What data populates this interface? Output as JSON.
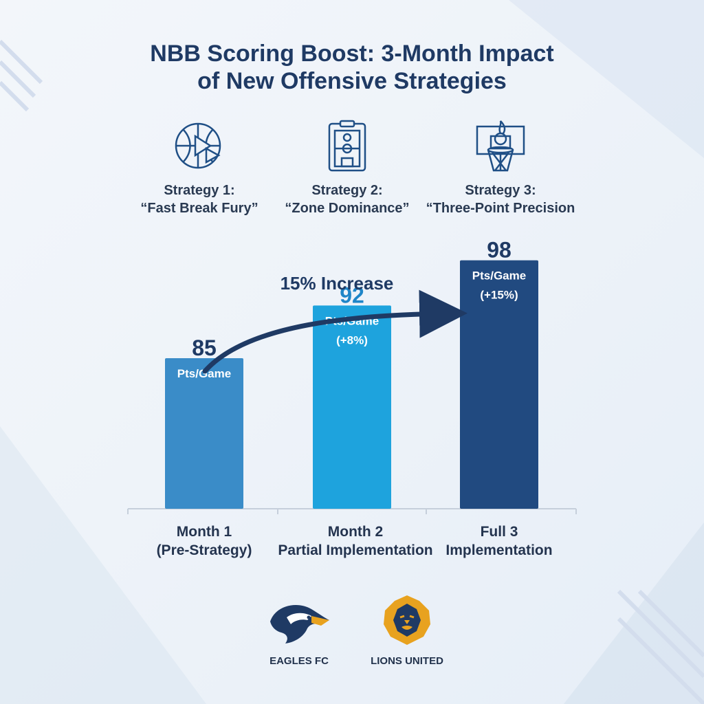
{
  "title": {
    "line1": "NBB Scoring Boost: 3-Month Impact",
    "line2": "of New Offensive Strategies"
  },
  "strategies": [
    {
      "icon": "basketball-play-icon",
      "name": "Strategy 1:",
      "quote": "“Fast Break Fury”"
    },
    {
      "icon": "clipboard-court-icon",
      "name": "Strategy 2:",
      "quote": "“Zone Dominance”"
    },
    {
      "icon": "flaming-hoop-icon",
      "name": "Strategy 3:",
      "quote": "“Three-Point Precision"
    }
  ],
  "annotation": "15% Increase",
  "chart_data": {
    "type": "bar",
    "categories": [
      "Month 1 (Pre-Strategy)",
      "Month 2 Partial Implementation",
      "Full 3 Implementation"
    ],
    "category_lines": [
      [
        "Month 1",
        "(Pre-Strategy)"
      ],
      [
        "Month 2",
        "Partial Implementation"
      ],
      [
        "Full 3",
        "Implementation"
      ]
    ],
    "values": [
      85,
      92,
      98
    ],
    "value_labels": [
      "85",
      "92",
      "98"
    ],
    "bar_text": [
      [
        "Pts/Game"
      ],
      [
        "Pts/Game",
        "(+8%)"
      ],
      [
        "Pts/Game",
        "(+15%)"
      ]
    ],
    "colors": [
      "#3a8cc8",
      "#1ea3dd",
      "#214a80"
    ],
    "ylim": [
      65,
      100
    ],
    "grid": false,
    "legend": "none"
  },
  "teams": [
    {
      "name": "EAGLES FC",
      "logo": "eagle-logo"
    },
    {
      "name": "LIONS UNITED",
      "logo": "lion-logo"
    }
  ],
  "colors": {
    "title": "#1f3a64",
    "arrow": "#1f3a64",
    "axis": "#c6cfdb"
  }
}
